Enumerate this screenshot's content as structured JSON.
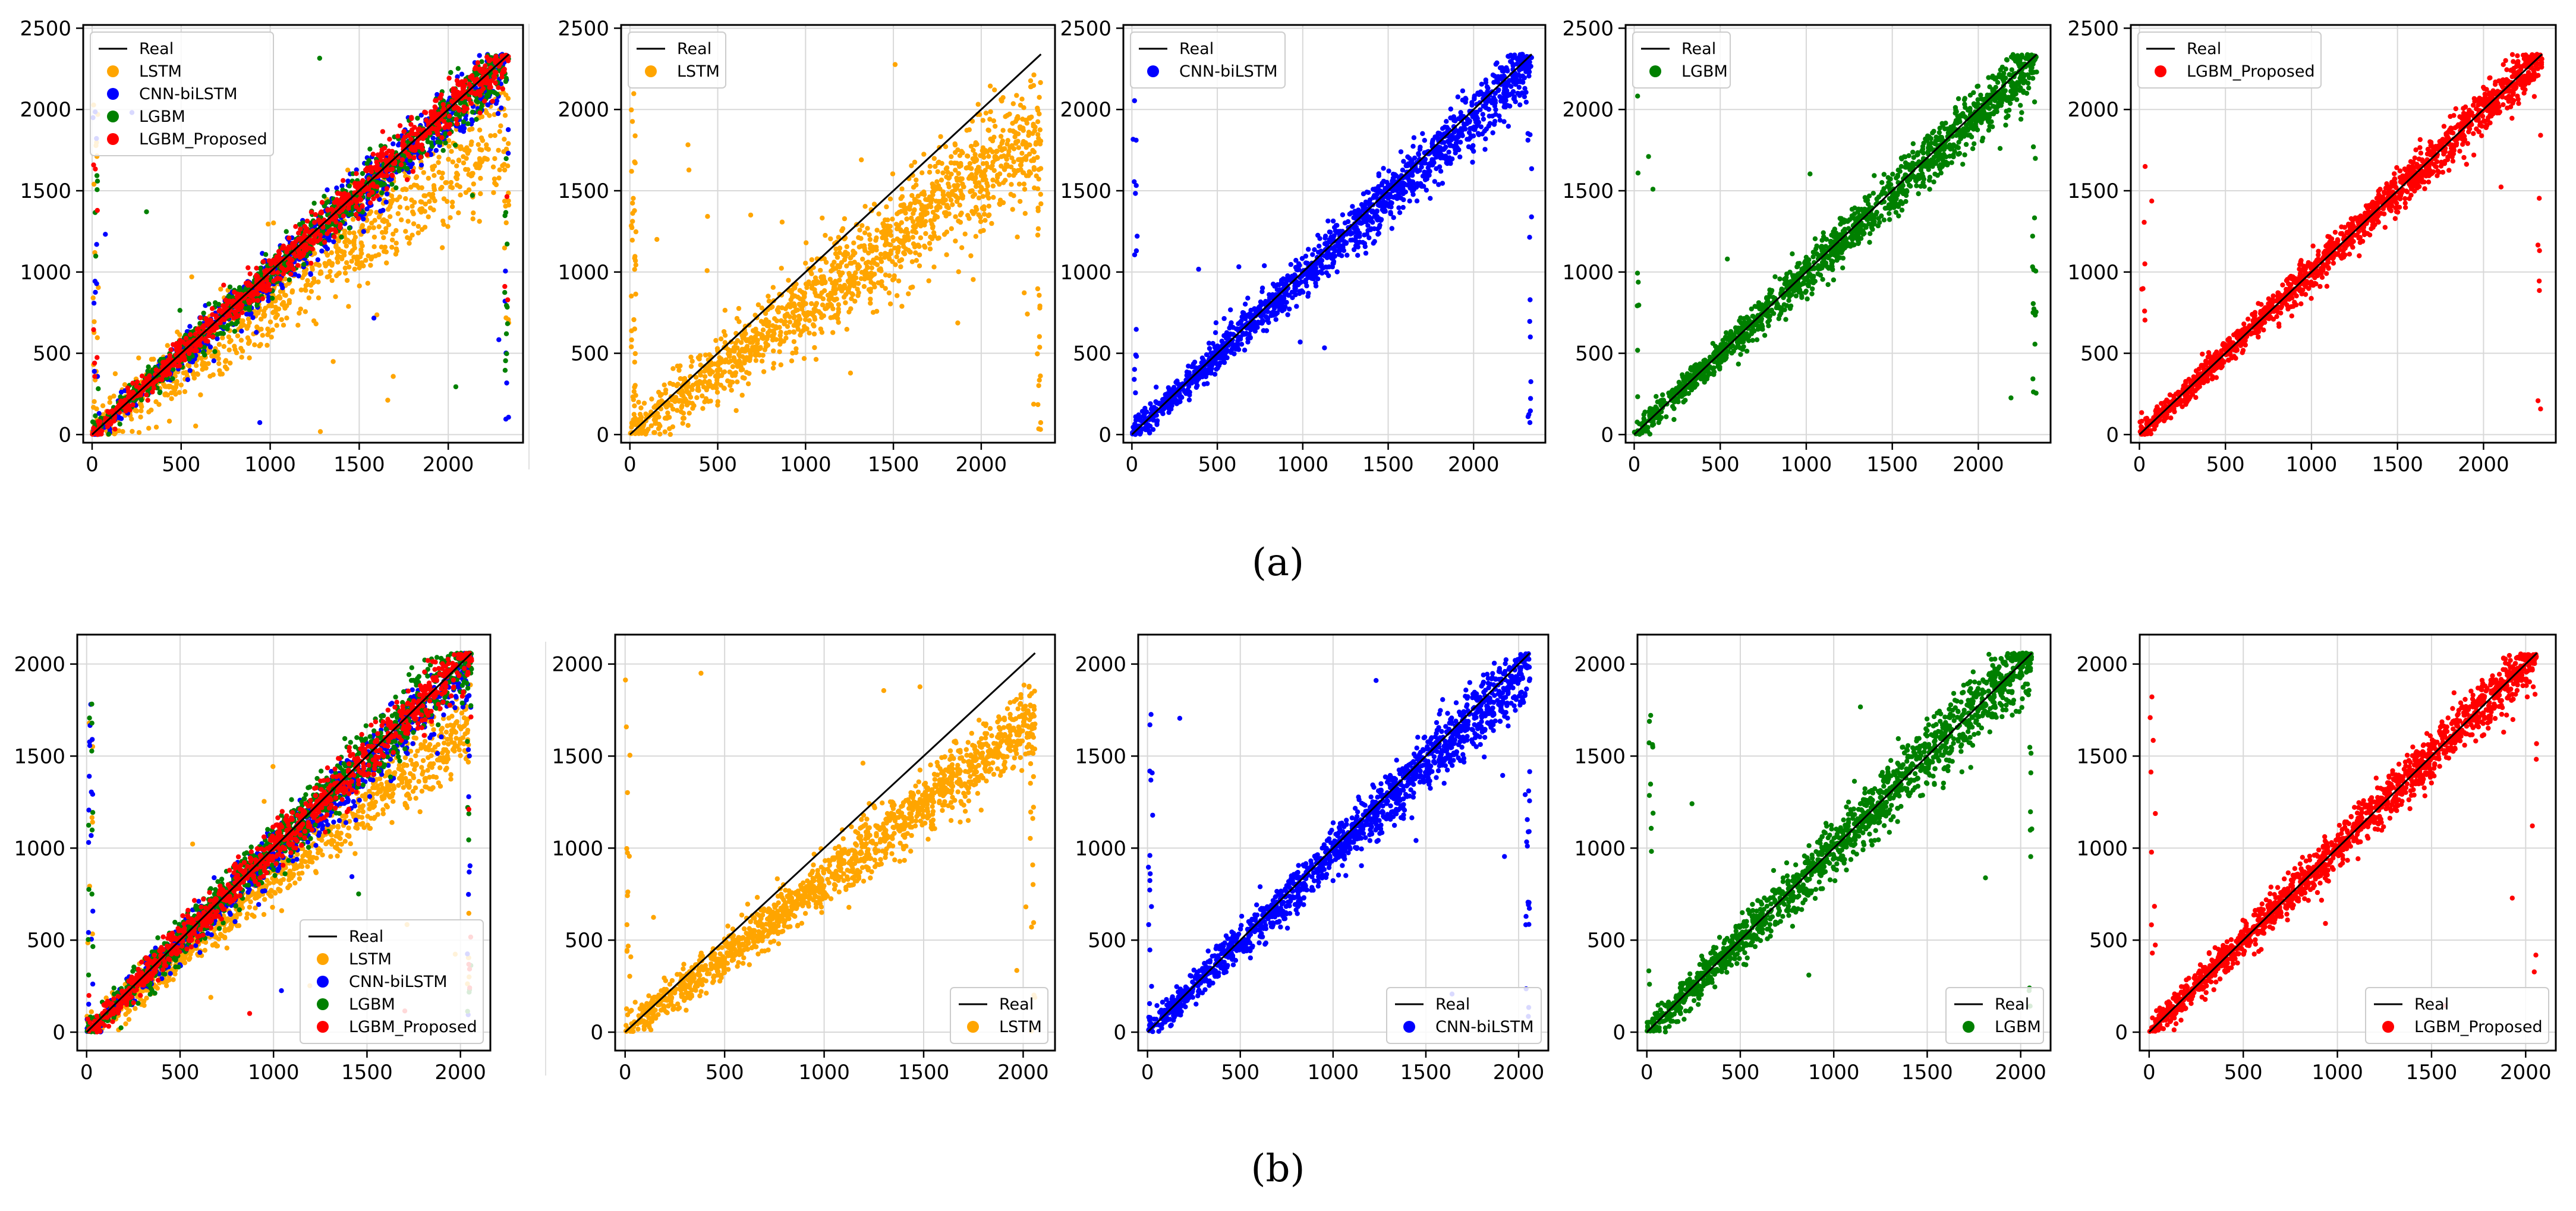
{
  "figure": {
    "rows": [
      {
        "label": "(a)",
        "chart_data": [
          {
            "type": "scatter",
            "title": "",
            "xlabel": "",
            "ylabel": "",
            "xlim": [
              -50,
              2420
            ],
            "ylim": [
              -50,
              2520
            ],
            "xticks": [
              0,
              500,
              1000,
              1500,
              2000
            ],
            "yticks": [
              0,
              500,
              1000,
              1500,
              2000,
              2500
            ],
            "grid": true,
            "legend_position": "upper-left",
            "legend": [
              "Real",
              "LSTM",
              "CNN-biLSTM",
              "LGBM",
              "LGBM_Proposed"
            ],
            "reference_line": {
              "name": "Real",
              "x": [
                0,
                2340
              ],
              "y": [
                0,
                2340
              ],
              "color": "#000000"
            },
            "series": [
              {
                "name": "LSTM",
                "color": "#ffa500",
                "bias": 0.8,
                "spread": 0.08,
                "outlier_rate": 0.02
              },
              {
                "name": "CNN-biLSTM",
                "color": "#0000ff",
                "bias": 0.98,
                "spread": 0.045,
                "outlier_rate": 0.012
              },
              {
                "name": "LGBM",
                "color": "#008000",
                "bias": 0.99,
                "spread": 0.04,
                "outlier_rate": 0.008
              },
              {
                "name": "LGBM_Proposed",
                "color": "#ff0000",
                "bias": 1.0,
                "spread": 0.035,
                "outlier_rate": 0.006
              }
            ]
          },
          {
            "type": "scatter",
            "title": "",
            "xlabel": "",
            "ylabel": "",
            "xlim": [
              -50,
              2420
            ],
            "ylim": [
              -50,
              2520
            ],
            "xticks": [
              0,
              500,
              1000,
              1500,
              2000
            ],
            "yticks": [
              0,
              500,
              1000,
              1500,
              2000,
              2500
            ],
            "grid": true,
            "legend_position": "upper-left",
            "legend": [
              "Real",
              "LSTM"
            ],
            "reference_line": {
              "name": "Real",
              "x": [
                0,
                2340
              ],
              "y": [
                0,
                2340
              ],
              "color": "#000000"
            },
            "series": [
              {
                "name": "LSTM",
                "color": "#ffa500",
                "bias": 0.8,
                "spread": 0.08,
                "outlier_rate": 0.02
              }
            ]
          },
          {
            "type": "scatter",
            "title": "",
            "xlabel": "",
            "ylabel": "",
            "xlim": [
              -50,
              2420
            ],
            "ylim": [
              -50,
              2520
            ],
            "xticks": [
              0,
              500,
              1000,
              1500,
              2000
            ],
            "yticks": [
              0,
              500,
              1000,
              1500,
              2000,
              2500
            ],
            "grid": true,
            "legend_position": "upper-left",
            "legend": [
              "Real",
              "CNN-biLSTM"
            ],
            "reference_line": {
              "name": "Real",
              "x": [
                0,
                2340
              ],
              "y": [
                0,
                2340
              ],
              "color": "#000000"
            },
            "series": [
              {
                "name": "CNN-biLSTM",
                "color": "#0000ff",
                "bias": 0.98,
                "spread": 0.045,
                "outlier_rate": 0.012
              }
            ]
          },
          {
            "type": "scatter",
            "title": "",
            "xlabel": "",
            "ylabel": "",
            "xlim": [
              -50,
              2420
            ],
            "ylim": [
              -50,
              2520
            ],
            "xticks": [
              0,
              500,
              1000,
              1500,
              2000
            ],
            "yticks": [
              0,
              500,
              1000,
              1500,
              2000,
              2500
            ],
            "grid": true,
            "legend_position": "upper-left",
            "legend": [
              "Real",
              "LGBM"
            ],
            "reference_line": {
              "name": "Real",
              "x": [
                0,
                2340
              ],
              "y": [
                0,
                2340
              ],
              "color": "#000000"
            },
            "series": [
              {
                "name": "LGBM",
                "color": "#008000",
                "bias": 0.99,
                "spread": 0.04,
                "outlier_rate": 0.008
              }
            ]
          },
          {
            "type": "scatter",
            "title": "",
            "xlabel": "",
            "ylabel": "",
            "xlim": [
              -50,
              2420
            ],
            "ylim": [
              -50,
              2520
            ],
            "xticks": [
              0,
              500,
              1000,
              1500,
              2000
            ],
            "yticks": [
              0,
              500,
              1000,
              1500,
              2000,
              2500
            ],
            "grid": true,
            "legend_position": "upper-left",
            "legend": [
              "Real",
              "LGBM_Proposed"
            ],
            "reference_line": {
              "name": "Real",
              "x": [
                0,
                2340
              ],
              "y": [
                0,
                2340
              ],
              "color": "#000000"
            },
            "series": [
              {
                "name": "LGBM_Proposed",
                "color": "#ff0000",
                "bias": 1.0,
                "spread": 0.035,
                "outlier_rate": 0.006
              }
            ]
          }
        ]
      },
      {
        "label": "(b)",
        "chart_data": [
          {
            "type": "scatter",
            "title": "",
            "xlabel": "",
            "ylabel": "",
            "xlim": [
              -50,
              2160
            ],
            "ylim": [
              -100,
              2160
            ],
            "xticks": [
              0,
              500,
              1000,
              1500,
              2000
            ],
            "yticks": [
              0,
              500,
              1000,
              1500,
              2000
            ],
            "grid": true,
            "legend_position": "lower-right",
            "legend": [
              "Real",
              "LSTM",
              "CNN-biLSTM",
              "LGBM",
              "LGBM_Proposed"
            ],
            "reference_line": {
              "name": "Real",
              "x": [
                0,
                2060
              ],
              "y": [
                0,
                2060
              ],
              "color": "#000000"
            },
            "series": [
              {
                "name": "LSTM",
                "color": "#ffa500",
                "bias": 0.82,
                "spread": 0.05,
                "outlier_rate": 0.01
              },
              {
                "name": "CNN-biLSTM",
                "color": "#0000ff",
                "bias": 0.97,
                "spread": 0.045,
                "outlier_rate": 0.012
              },
              {
                "name": "LGBM",
                "color": "#008000",
                "bias": 1.0,
                "spread": 0.05,
                "outlier_rate": 0.01
              },
              {
                "name": "LGBM_Proposed",
                "color": "#ff0000",
                "bias": 1.0,
                "spread": 0.04,
                "outlier_rate": 0.006
              }
            ]
          },
          {
            "type": "scatter",
            "title": "",
            "xlabel": "",
            "ylabel": "",
            "xlim": [
              -50,
              2160
            ],
            "ylim": [
              -100,
              2160
            ],
            "xticks": [
              0,
              500,
              1000,
              1500,
              2000
            ],
            "yticks": [
              0,
              500,
              1000,
              1500,
              2000
            ],
            "grid": true,
            "legend_position": "lower-right",
            "legend": [
              "Real",
              "LSTM"
            ],
            "reference_line": {
              "name": "Real",
              "x": [
                0,
                2060
              ],
              "y": [
                0,
                2060
              ],
              "color": "#000000"
            },
            "series": [
              {
                "name": "LSTM",
                "color": "#ffa500",
                "bias": 0.82,
                "spread": 0.05,
                "outlier_rate": 0.01
              }
            ]
          },
          {
            "type": "scatter",
            "title": "",
            "xlabel": "",
            "ylabel": "",
            "xlim": [
              -50,
              2160
            ],
            "ylim": [
              -100,
              2160
            ],
            "xticks": [
              0,
              500,
              1000,
              1500,
              2000
            ],
            "yticks": [
              0,
              500,
              1000,
              1500,
              2000
            ],
            "grid": true,
            "legend_position": "lower-right",
            "legend": [
              "Real",
              "CNN-biLSTM"
            ],
            "reference_line": {
              "name": "Real",
              "x": [
                0,
                2060
              ],
              "y": [
                0,
                2060
              ],
              "color": "#000000"
            },
            "series": [
              {
                "name": "CNN-biLSTM",
                "color": "#0000ff",
                "bias": 0.97,
                "spread": 0.045,
                "outlier_rate": 0.012
              }
            ]
          },
          {
            "type": "scatter",
            "title": "",
            "xlabel": "",
            "ylabel": "",
            "xlim": [
              -50,
              2160
            ],
            "ylim": [
              -100,
              2160
            ],
            "xticks": [
              0,
              500,
              1000,
              1500,
              2000
            ],
            "yticks": [
              0,
              500,
              1000,
              1500,
              2000
            ],
            "grid": true,
            "legend_position": "lower-right",
            "legend": [
              "Real",
              "LGBM"
            ],
            "reference_line": {
              "name": "Real",
              "x": [
                0,
                2060
              ],
              "y": [
                0,
                2060
              ],
              "color": "#000000"
            },
            "series": [
              {
                "name": "LGBM",
                "color": "#008000",
                "bias": 1.0,
                "spread": 0.05,
                "outlier_rate": 0.01
              }
            ]
          },
          {
            "type": "scatter",
            "title": "",
            "xlabel": "",
            "ylabel": "",
            "xlim": [
              -50,
              2160
            ],
            "ylim": [
              -100,
              2160
            ],
            "xticks": [
              0,
              500,
              1000,
              1500,
              2000
            ],
            "yticks": [
              0,
              500,
              1000,
              1500,
              2000
            ],
            "grid": true,
            "legend_position": "lower-right",
            "legend": [
              "Real",
              "LGBM_Proposed"
            ],
            "reference_line": {
              "name": "Real",
              "x": [
                0,
                2060
              ],
              "y": [
                0,
                2060
              ],
              "color": "#000000"
            },
            "series": [
              {
                "name": "LGBM_Proposed",
                "color": "#ff0000",
                "bias": 1.0,
                "spread": 0.04,
                "outlier_rate": 0.006
              }
            ]
          }
        ]
      }
    ]
  }
}
